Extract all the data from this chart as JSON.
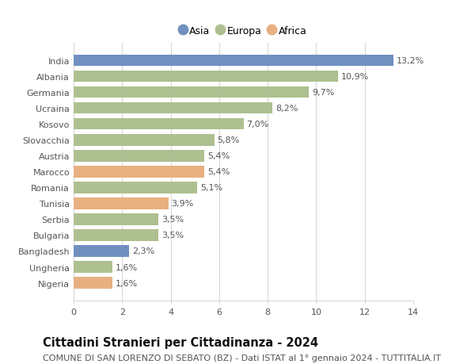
{
  "countries": [
    "India",
    "Albania",
    "Germania",
    "Ucraina",
    "Kosovo",
    "Slovacchia",
    "Austria",
    "Marocco",
    "Romania",
    "Tunisia",
    "Serbia",
    "Bulgaria",
    "Bangladesh",
    "Ungheria",
    "Nigeria"
  ],
  "values": [
    13.2,
    10.9,
    9.7,
    8.2,
    7.0,
    5.8,
    5.4,
    5.4,
    5.1,
    3.9,
    3.5,
    3.5,
    2.3,
    1.6,
    1.6
  ],
  "labels": [
    "13,2%",
    "10,9%",
    "9,7%",
    "8,2%",
    "7,0%",
    "5,8%",
    "5,4%",
    "5,4%",
    "5,1%",
    "3,9%",
    "3,5%",
    "3,5%",
    "2,3%",
    "1,6%",
    "1,6%"
  ],
  "continents": [
    "Asia",
    "Europa",
    "Europa",
    "Europa",
    "Europa",
    "Europa",
    "Europa",
    "Africa",
    "Europa",
    "Africa",
    "Europa",
    "Europa",
    "Asia",
    "Europa",
    "Africa"
  ],
  "colors": {
    "Asia": "#7090c0",
    "Europa": "#aec090",
    "Africa": "#e8b080"
  },
  "legend_order": [
    "Asia",
    "Europa",
    "Africa"
  ],
  "xlim": [
    0,
    14
  ],
  "xticks": [
    0,
    2,
    4,
    6,
    8,
    10,
    12,
    14
  ],
  "title": "Cittadini Stranieri per Cittadinanza - 2024",
  "subtitle": "COMUNE DI SAN LORENZO DI SEBATO (BZ) - Dati ISTAT al 1° gennaio 2024 - TUTTITALIA.IT",
  "bg_color": "#ffffff",
  "grid_color": "#d8d8d8",
  "bar_height": 0.72,
  "title_fontsize": 10.5,
  "subtitle_fontsize": 8,
  "label_fontsize": 8,
  "tick_fontsize": 8,
  "legend_fontsize": 9
}
